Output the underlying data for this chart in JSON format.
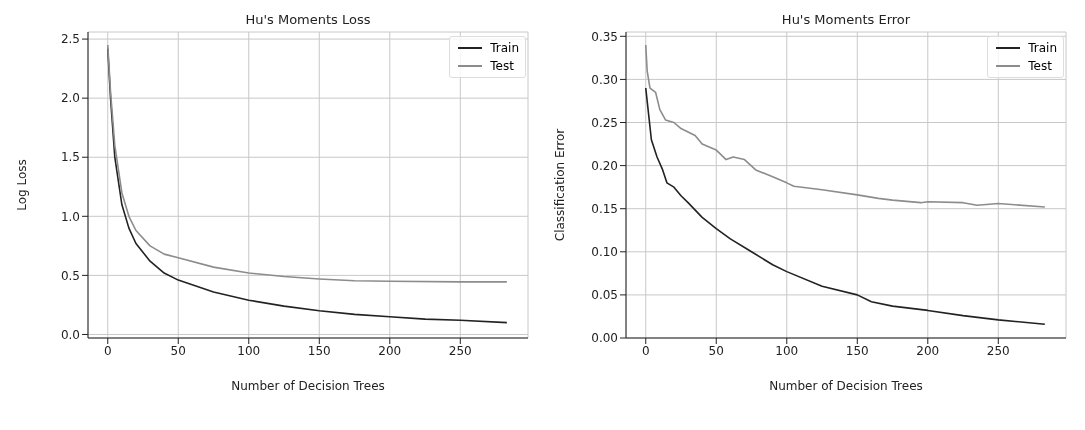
{
  "chart_data": [
    {
      "type": "line",
      "title": "Hu's Moments Loss",
      "xlabel": "Number of  Decision Trees",
      "ylabel": "Log Loss",
      "xlim": [
        -14,
        298
      ],
      "xticks": [
        0,
        50,
        100,
        150,
        200,
        250
      ],
      "ylim": [
        -0.03,
        2.56
      ],
      "yticks": [
        {
          "value": 0,
          "label": "0.0"
        },
        0.5,
        {
          "value": 1,
          "label": "1.0"
        },
        1.5,
        {
          "value": 2,
          "label": "2.0"
        },
        2.5
      ],
      "grid": true,
      "legend": "top right",
      "marker": "none",
      "line_style": "solid",
      "series": [
        {
          "name": "Train",
          "color": "#222222",
          "x": [
            0,
            2,
            5,
            10,
            15,
            20,
            30,
            40,
            50,
            75,
            100,
            125,
            150,
            175,
            200,
            225,
            250,
            283
          ],
          "values": [
            2.42,
            2.0,
            1.5,
            1.1,
            0.9,
            0.77,
            0.62,
            0.52,
            0.46,
            0.36,
            0.29,
            0.24,
            0.2,
            0.17,
            0.15,
            0.13,
            0.12,
            0.1
          ]
        },
        {
          "name": "Test",
          "color": "#8c8c8c",
          "x": [
            0,
            2,
            5,
            10,
            15,
            20,
            30,
            40,
            50,
            75,
            100,
            125,
            150,
            175,
            200,
            250,
            283
          ],
          "values": [
            2.45,
            2.05,
            1.6,
            1.2,
            1.0,
            0.88,
            0.75,
            0.68,
            0.65,
            0.57,
            0.52,
            0.49,
            0.47,
            0.455,
            0.45,
            0.445,
            0.445
          ]
        }
      ]
    },
    {
      "type": "line",
      "title": "Hu's Moments Error",
      "xlabel": "Number of  Decision Trees",
      "ylabel": "Classification Error",
      "xlim": [
        -14,
        298
      ],
      "xticks": [
        0,
        50,
        100,
        150,
        200,
        250
      ],
      "ylim": [
        0,
        0.355
      ],
      "yticks": [
        {
          "value": 0,
          "label": "0.00"
        },
        0.05,
        {
          "value": 0.1,
          "label": "0.10"
        },
        0.15,
        {
          "value": 0.2,
          "label": "0.20"
        },
        0.25,
        {
          "value": 0.3,
          "label": "0.30"
        },
        0.35
      ],
      "grid": true,
      "legend": "top right",
      "marker": "none",
      "line_style": "solid",
      "series": [
        {
          "name": "Train",
          "color": "#222222",
          "x": [
            0,
            2,
            4,
            8,
            12,
            15,
            20,
            25,
            30,
            40,
            50,
            60,
            75,
            90,
            100,
            125,
            150,
            160,
            175,
            200,
            225,
            250,
            283
          ],
          "values": [
            0.29,
            0.26,
            0.23,
            0.21,
            0.195,
            0.18,
            0.175,
            0.165,
            0.157,
            0.14,
            0.127,
            0.115,
            0.1,
            0.085,
            0.077,
            0.06,
            0.05,
            0.042,
            0.037,
            0.032,
            0.026,
            0.021,
            0.016
          ]
        },
        {
          "name": "Test",
          "color": "#8c8c8c",
          "x": [
            0,
            1,
            3,
            7,
            10,
            14,
            20,
            25,
            35,
            40,
            50,
            57,
            62,
            70,
            78,
            90,
            100,
            105,
            125,
            150,
            165,
            175,
            195,
            200,
            225,
            235,
            250,
            283
          ],
          "values": [
            0.34,
            0.31,
            0.29,
            0.285,
            0.265,
            0.253,
            0.25,
            0.243,
            0.235,
            0.225,
            0.218,
            0.207,
            0.21,
            0.207,
            0.195,
            0.187,
            0.18,
            0.176,
            0.172,
            0.166,
            0.162,
            0.16,
            0.157,
            0.158,
            0.157,
            0.154,
            0.156,
            0.152
          ]
        }
      ]
    }
  ]
}
